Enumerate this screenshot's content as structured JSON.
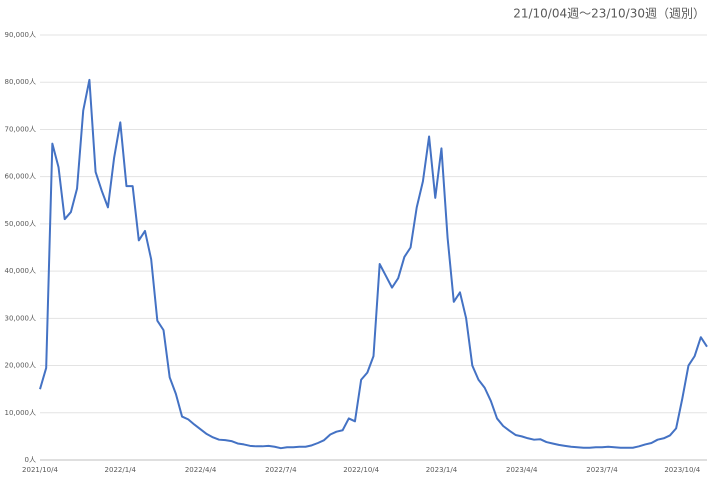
{
  "chart_data": {
    "type": "line",
    "title": "21/10/04週～23/10/30週（週別）",
    "categories": [
      "2021/10/4",
      null,
      null,
      null,
      null,
      null,
      null,
      null,
      null,
      null,
      null,
      null,
      null,
      "2022/1/4",
      null,
      null,
      null,
      null,
      null,
      null,
      null,
      null,
      null,
      null,
      null,
      null,
      "2022/4/4",
      null,
      null,
      null,
      null,
      null,
      null,
      null,
      null,
      null,
      null,
      null,
      null,
      "2022/7/4",
      null,
      null,
      null,
      null,
      null,
      null,
      null,
      null,
      null,
      null,
      null,
      null,
      "2022/10/4",
      null,
      null,
      null,
      null,
      null,
      null,
      null,
      null,
      null,
      null,
      null,
      null,
      "2023/1/4",
      null,
      null,
      null,
      null,
      null,
      null,
      null,
      null,
      null,
      null,
      null,
      null,
      "2023/4/4",
      null,
      null,
      null,
      null,
      null,
      null,
      null,
      null,
      null,
      null,
      null,
      null,
      "2023/7/4",
      null,
      null,
      null,
      null,
      null,
      null,
      null,
      null,
      null,
      null,
      null,
      null,
      "2023/10/4",
      null,
      null,
      null,
      null
    ],
    "values": [
      15000,
      19500,
      67000,
      62000,
      51000,
      52500,
      57500,
      74000,
      80500,
      61000,
      57000,
      53500,
      64000,
      71500,
      58000,
      58000,
      46500,
      48500,
      42500,
      29500,
      27500,
      17500,
      14000,
      9200,
      8600,
      7500,
      6500,
      5500,
      4800,
      4300,
      4200,
      4000,
      3500,
      3300,
      3000,
      2900,
      2900,
      3000,
      2800,
      2500,
      2700,
      2700,
      2800,
      2800,
      3100,
      3600,
      4200,
      5400,
      6000,
      6300,
      8800,
      8200,
      17000,
      18500,
      22000,
      41500,
      39000,
      36500,
      38500,
      43000,
      45000,
      53500,
      59000,
      68500,
      55500,
      66000,
      47000,
      33500,
      35500,
      30000,
      20000,
      17000,
      15300,
      12500,
      8800,
      7200,
      6200,
      5300,
      5000,
      4600,
      4300,
      4400,
      3800,
      3500,
      3200,
      3000,
      2800,
      2700,
      2600,
      2600,
      2700,
      2700,
      2800,
      2700,
      2600,
      2600,
      2600,
      2900,
      3300,
      3600,
      4300,
      4600,
      5200,
      6700,
      13000,
      20000,
      22000,
      26000,
      24000
    ],
    "color": "#4472c4",
    "ylim": [
      0,
      90000
    ],
    "yticks": [
      {
        "value": 0,
        "label": "0人"
      },
      {
        "value": 10000,
        "label": "10,000人"
      },
      {
        "value": 20000,
        "label": "20,000人"
      },
      {
        "value": 30000,
        "label": "30,000人"
      },
      {
        "value": 40000,
        "label": "40,000人"
      },
      {
        "value": 50000,
        "label": "50,000人"
      },
      {
        "value": 60000,
        "label": "60,000人"
      },
      {
        "value": 70000,
        "label": "70,000人"
      },
      {
        "value": 80000,
        "label": "80,000人"
      },
      {
        "value": 90000,
        "label": "90,000人"
      }
    ],
    "grid": true
  }
}
